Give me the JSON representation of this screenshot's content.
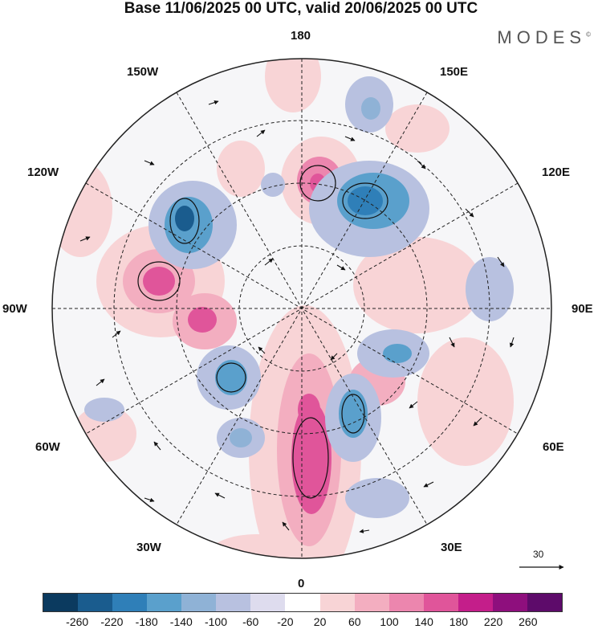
{
  "header": {
    "title": "Base 11/06/2025 00 UTC, valid 20/06/2025 00 UTC",
    "brand": "MODES",
    "brand_mark": "©"
  },
  "map": {
    "projection": "north-polar-stereographic",
    "longitude_labels": {
      "top": "180",
      "top_left": "150W",
      "top_right": "150E",
      "upper_left": "120W",
      "upper_right": "120E",
      "left": "90W",
      "right": "90E",
      "lower_left": "60W",
      "lower_right": "60E",
      "bottom_left": "30W",
      "bottom_right": "30E",
      "bottom": "0"
    },
    "wind_scale_label": "30"
  },
  "colorbar": {
    "colors": [
      "#0b3a5f",
      "#1a5c8e",
      "#2f7fb8",
      "#5aa0cc",
      "#8fb2d6",
      "#b8c1e0",
      "#dedcee",
      "#ffffff",
      "#f8d4d6",
      "#f3aec0",
      "#ec86ae",
      "#e0559a",
      "#c41e8a",
      "#8e0f7d",
      "#5d0b6a"
    ],
    "tick_labels": [
      "-260",
      "-220",
      "-180",
      "-140",
      "-100",
      "-60",
      "-20",
      "20",
      "60",
      "100",
      "140",
      "180",
      "220",
      "260"
    ]
  }
}
